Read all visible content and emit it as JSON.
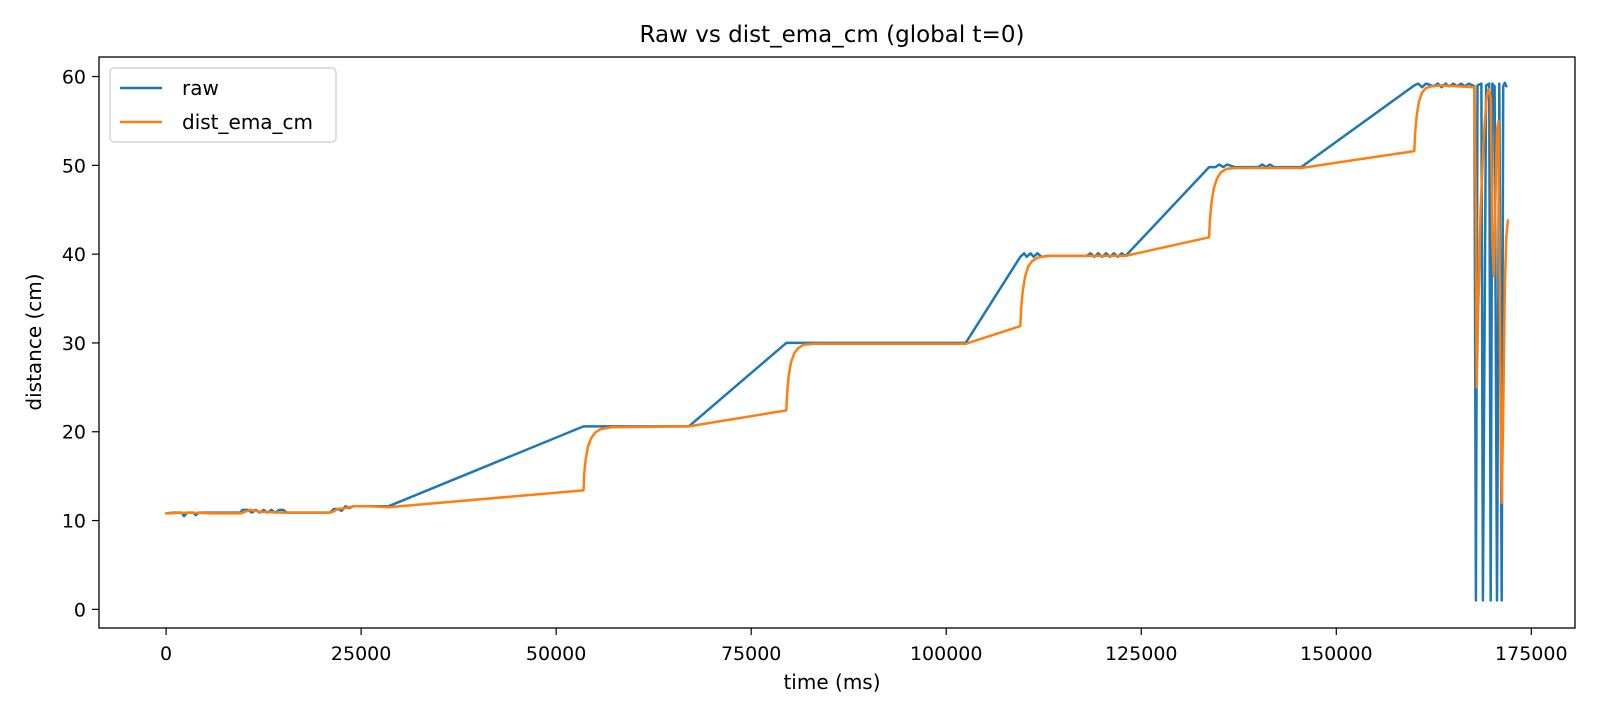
{
  "chart_data": {
    "type": "line",
    "title": "Raw vs dist_ema_cm (global t=0)",
    "xlabel": "time (ms)",
    "ylabel": "distance (cm)",
    "xlim": [
      -8600,
      180600
    ],
    "ylim": [
      -2.1,
      62.2
    ],
    "xticks": [
      0,
      25000,
      50000,
      75000,
      100000,
      125000,
      150000,
      175000
    ],
    "yticks": [
      0,
      10,
      20,
      30,
      40,
      50,
      60
    ],
    "grid": false,
    "legend_position": "upper-left",
    "series": [
      {
        "name": "raw",
        "color": "#1f77b4",
        "x": [
          0,
          1000,
          2000,
          2300,
          2700,
          3500,
          3800,
          4200,
          6000,
          9500,
          9800,
          10500,
          11000,
          11500,
          12000,
          12500,
          13000,
          13500,
          14000,
          14500,
          15000,
          15500,
          21000,
          21500,
          22000,
          22500,
          23000,
          23500,
          24000,
          28500,
          53500,
          67000,
          79500,
          102500,
          109500,
          110000,
          110300,
          110800,
          111200,
          111700,
          112200,
          113000,
          118000,
          118500,
          119000,
          119500,
          120000,
          120500,
          121000,
          121500,
          122000,
          122500,
          123000,
          133700,
          134500,
          135000,
          135500,
          136000,
          137000,
          140000,
          140500,
          141000,
          141500,
          142000,
          145500,
          160000,
          160500,
          161000,
          161500,
          162500,
          163000,
          163500,
          164000,
          164500,
          165000,
          165500,
          166000,
          166500,
          167000,
          167700,
          167900,
          168100,
          168600,
          168800,
          169200,
          169600,
          169800,
          170000,
          170300,
          170600,
          170900,
          171200,
          171400,
          171600,
          171800
        ],
        "y": [
          10.8,
          10.9,
          10.9,
          10.5,
          10.9,
          10.9,
          10.6,
          10.9,
          10.9,
          10.9,
          11.2,
          11.2,
          10.9,
          11.2,
          10.9,
          11.2,
          10.9,
          11.2,
          10.9,
          11.2,
          11.2,
          10.9,
          10.9,
          11.3,
          11.3,
          11.1,
          11.6,
          11.4,
          11.6,
          11.6,
          20.6,
          20.6,
          30.0,
          30.0,
          39.7,
          40.1,
          39.7,
          40.1,
          39.7,
          40.1,
          39.7,
          39.8,
          39.8,
          40.1,
          39.7,
          40.1,
          39.7,
          40.1,
          39.7,
          40.1,
          39.7,
          40.1,
          39.8,
          49.8,
          49.8,
          50.1,
          49.8,
          50.1,
          49.8,
          49.8,
          50.1,
          49.8,
          50.1,
          49.8,
          49.8,
          59.0,
          59.2,
          58.8,
          59.2,
          58.9,
          59.2,
          58.8,
          59.2,
          58.9,
          59.2,
          58.9,
          59.2,
          58.9,
          59.2,
          58.9,
          1.0,
          59.0,
          59.2,
          1.0,
          59.0,
          59.2,
          1.0,
          59.2,
          58.9,
          1.0,
          59.2,
          1.0,
          58.9,
          59.3,
          58.9
        ]
      },
      {
        "name": "dist_ema_cm",
        "color": "#ff7f0e",
        "x": [
          0,
          3000,
          6000,
          9500,
          10800,
          12000,
          15000,
          21000,
          21400,
          22000,
          23000,
          24000,
          26000,
          28500,
          53500,
          53600,
          53800,
          54100,
          54500,
          55000,
          55700,
          57000,
          67000,
          79500,
          79600,
          79800,
          80100,
          80500,
          81000,
          81700,
          83000,
          102500,
          109500,
          109600,
          109800,
          110100,
          110500,
          111000,
          111700,
          113000,
          123000,
          133700,
          133800,
          134000,
          134300,
          134700,
          135200,
          135900,
          137000,
          145500,
          160000,
          160100,
          160300,
          160600,
          161000,
          161500,
          162200,
          163500,
          167700,
          167900,
          168000,
          168200,
          168500,
          168900,
          169200,
          169400,
          169600,
          169800,
          170000,
          170200,
          170400,
          170600,
          170800,
          171000,
          171200,
          171400,
          171600,
          171800,
          172000
        ],
        "y": [
          10.8,
          10.9,
          10.8,
          10.8,
          11.2,
          11.0,
          10.9,
          10.9,
          11.0,
          11.3,
          11.4,
          11.6,
          11.6,
          11.5,
          13.4,
          15.3,
          17.0,
          18.4,
          19.3,
          19.9,
          20.3,
          20.5,
          20.6,
          22.4,
          24.3,
          26.2,
          27.8,
          28.8,
          29.4,
          29.8,
          29.9,
          29.9,
          31.9,
          33.8,
          35.8,
          37.4,
          38.6,
          39.2,
          39.6,
          39.8,
          39.8,
          41.9,
          43.8,
          45.8,
          47.4,
          48.5,
          49.2,
          49.6,
          49.7,
          49.7,
          51.6,
          53.6,
          55.5,
          57.2,
          58.2,
          58.7,
          58.9,
          59.0,
          58.8,
          44.0,
          25.0,
          34.0,
          45.0,
          53.0,
          57.0,
          58.2,
          58.6,
          57.5,
          42.0,
          37.5,
          46.0,
          54.0,
          55.0,
          30.0,
          12.0,
          22.0,
          36.0,
          42.0,
          43.8
        ]
      }
    ]
  }
}
